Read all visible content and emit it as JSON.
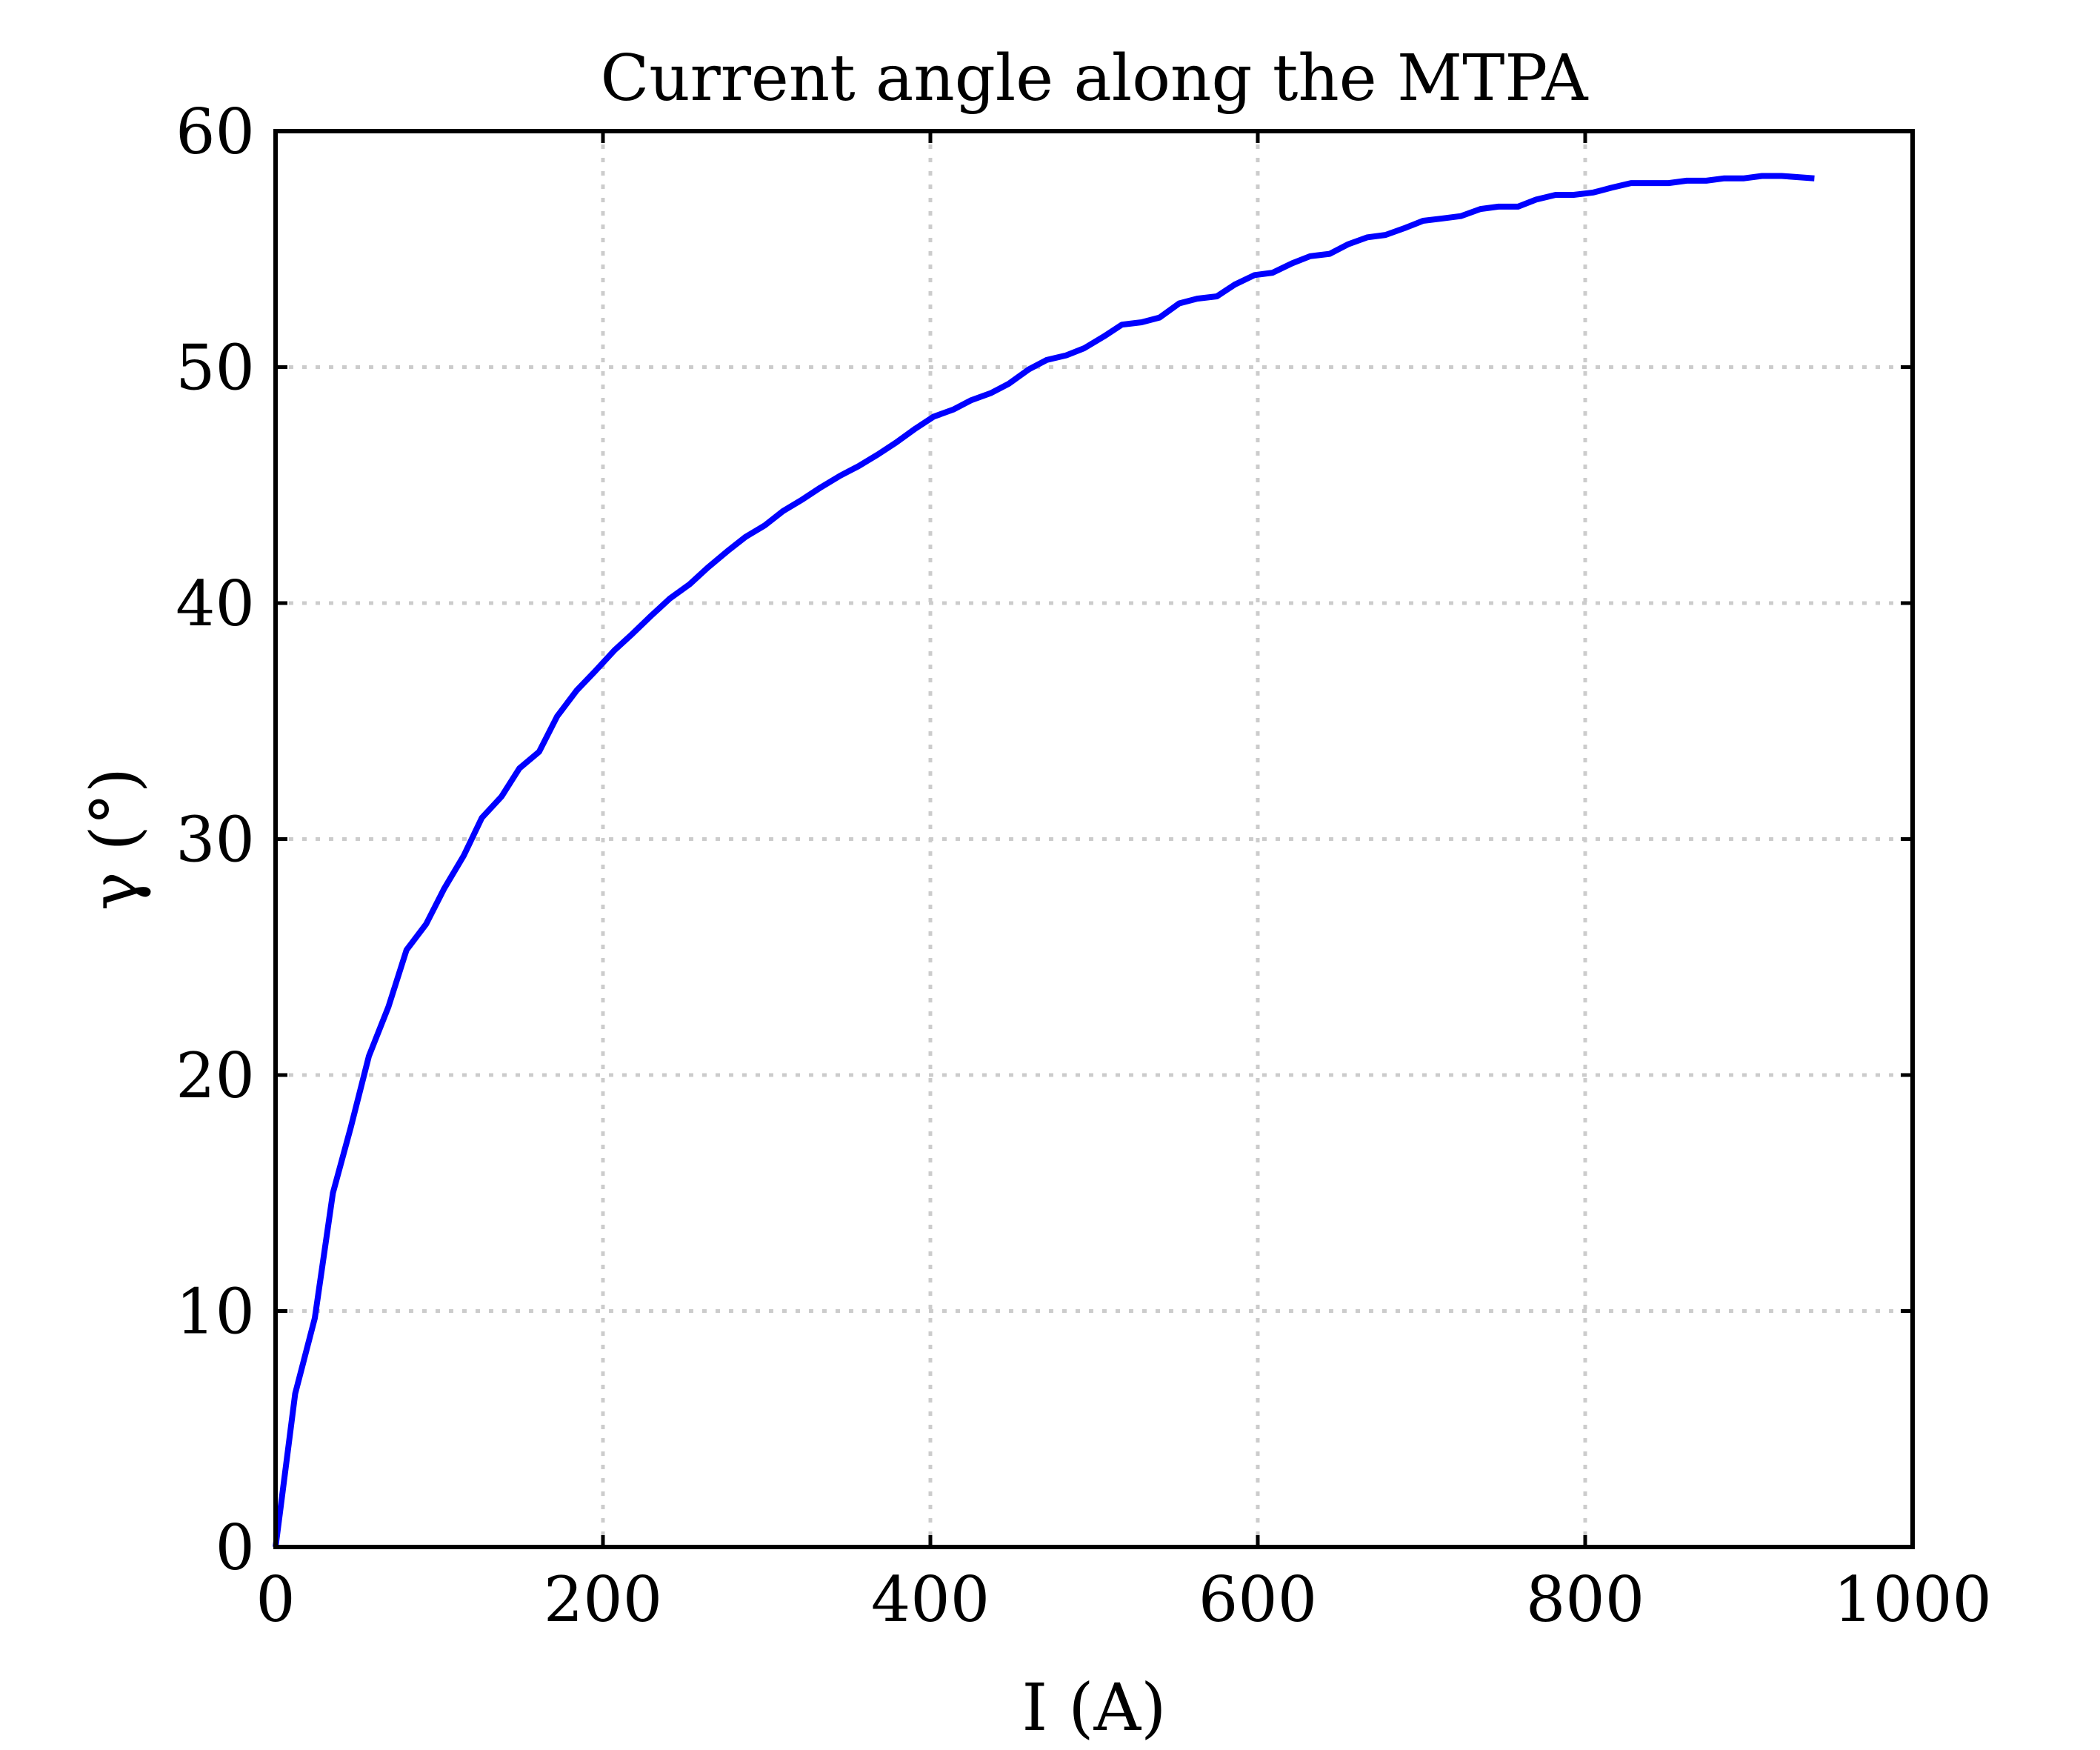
{
  "chart_data": {
    "type": "line",
    "title": "Current angle along the MTPA",
    "xlabel": "I (A)",
    "ylabel": "γ (°)",
    "xlim": [
      0,
      1000
    ],
    "ylim": [
      0,
      60
    ],
    "xticks": [
      0,
      200,
      400,
      600,
      800,
      1000
    ],
    "yticks": [
      0,
      10,
      20,
      30,
      40,
      50,
      60
    ],
    "grid": true,
    "colors": {
      "series": "#0000ff",
      "grid": "#cccccc",
      "axes": "#000000"
    },
    "series": [
      {
        "color": "#0000ff",
        "x": [
          0,
          12,
          24,
          35,
          46,
          57,
          69,
          80,
          92,
          103,
          115,
          126,
          138,
          149,
          161,
          172,
          184,
          195,
          207,
          218,
          230,
          241,
          253,
          264,
          276,
          287,
          299,
          310,
          322,
          333,
          345,
          356,
          368,
          379,
          391,
          402,
          414,
          425,
          437,
          448,
          460,
          471,
          483,
          494,
          506,
          517,
          529,
          540,
          552,
          563,
          575,
          586,
          598,
          609,
          621,
          632,
          644,
          655,
          667,
          678,
          690,
          701,
          713,
          724,
          736,
          747,
          759,
          770,
          782,
          793,
          805,
          816,
          828,
          839,
          851,
          862,
          874,
          885,
          897,
          908,
          920,
          940
        ],
        "y": [
          0,
          6.5,
          9.7,
          15.0,
          17.8,
          20.8,
          22.9,
          25.3,
          26.4,
          27.9,
          29.3,
          30.9,
          31.8,
          33.0,
          33.7,
          35.2,
          36.3,
          37.1,
          38.0,
          38.7,
          39.5,
          40.2,
          40.8,
          41.5,
          42.2,
          42.8,
          43.3,
          43.9,
          44.4,
          44.9,
          45.4,
          45.8,
          46.3,
          46.8,
          47.4,
          47.9,
          48.2,
          48.6,
          48.9,
          49.3,
          49.9,
          50.3,
          50.5,
          50.8,
          51.3,
          51.8,
          51.9,
          52.1,
          52.7,
          52.9,
          53.0,
          53.5,
          53.9,
          54.0,
          54.4,
          54.7,
          54.8,
          55.2,
          55.5,
          55.6,
          55.9,
          56.2,
          56.3,
          56.4,
          56.7,
          56.8,
          56.8,
          57.1,
          57.3,
          57.3,
          57.4,
          57.6,
          57.8,
          57.8,
          57.8,
          57.9,
          57.9,
          58.0,
          58.0,
          58.1,
          58.1,
          58.0
        ]
      }
    ]
  }
}
